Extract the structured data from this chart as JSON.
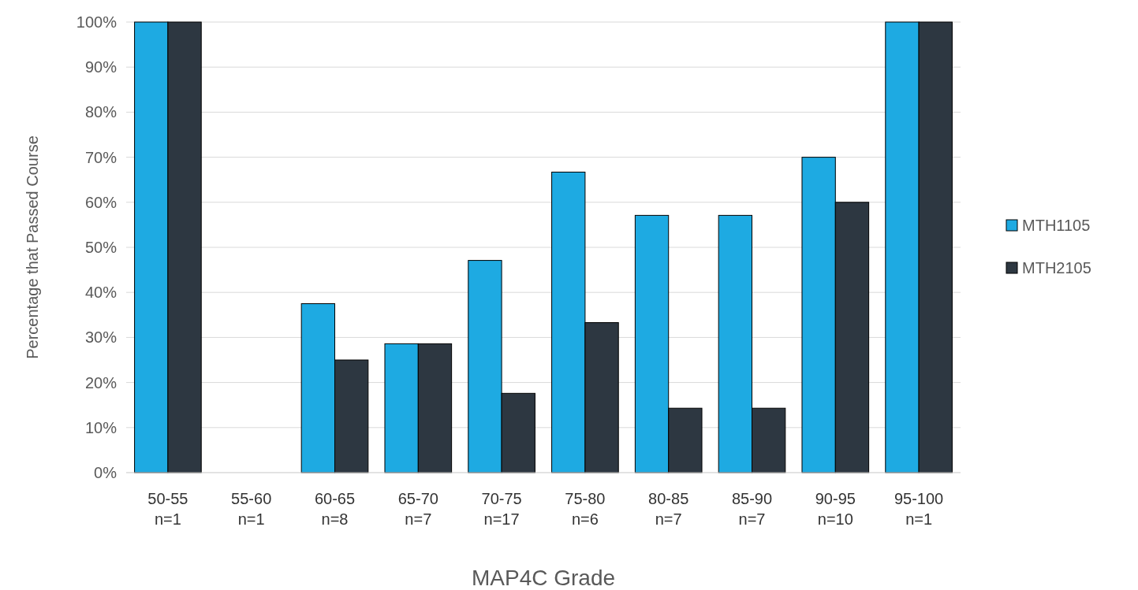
{
  "chart_data": {
    "type": "bar",
    "xlabel": "MAP4C Grade",
    "ylabel": "Percentage that Passed Course",
    "categories": [
      "50-55\nn=1",
      "55-60\nn=1",
      "60-65\nn=8",
      "65-70\nn=7",
      "70-75\nn=17",
      "75-80\nn=6",
      "80-85\nn=7",
      "85-90\nn=7",
      "90-95\nn=10",
      "95-100\nn=1"
    ],
    "series": [
      {
        "name": "MTH1105",
        "color": "#1eaae2",
        "values": [
          100,
          0,
          37.5,
          28.6,
          47.1,
          66.7,
          57.1,
          57.1,
          70,
          100
        ]
      },
      {
        "name": "MTH2105",
        "color": "#2d3741",
        "values": [
          100,
          0,
          25,
          28.6,
          17.6,
          33.3,
          14.3,
          14.3,
          60,
          100
        ]
      }
    ],
    "ylim": [
      0,
      100
    ],
    "yticks": [
      {
        "value": 0,
        "label": "0%"
      },
      {
        "value": 10,
        "label": "10%"
      },
      {
        "value": 20,
        "label": "20%"
      },
      {
        "value": 30,
        "label": "30%"
      },
      {
        "value": 40,
        "label": "40%"
      },
      {
        "value": 50,
        "label": "50%"
      },
      {
        "value": 60,
        "label": "60%"
      },
      {
        "value": 70,
        "label": "70%"
      },
      {
        "value": 80,
        "label": "80%"
      },
      {
        "value": 90,
        "label": "90%"
      },
      {
        "value": 100,
        "label": "100%"
      }
    ],
    "grid": "y",
    "legend": "right"
  }
}
